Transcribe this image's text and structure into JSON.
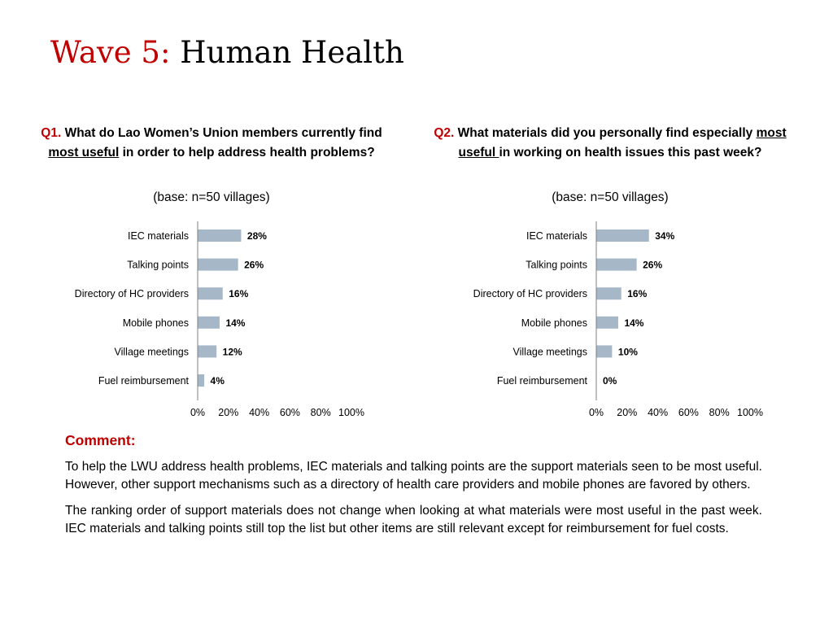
{
  "title": {
    "accent": "Wave 5:",
    "main": "Human Health"
  },
  "questions": [
    {
      "number": "Q1.",
      "text_before": "What do Lao Women’s Union members currently find ",
      "underlined": "most useful",
      "text_after": " in order to help address health problems?",
      "base": "(base: n=50 villages)"
    },
    {
      "number": "Q2.",
      "text_before": "What materials did you personally find especially ",
      "underlined": "most useful ",
      "text_after": "in working on health issues this past week?",
      "base": "(base: n=50 villages)"
    }
  ],
  "chart_data": [
    {
      "type": "bar",
      "orientation": "horizontal",
      "categories": [
        "IEC materials",
        "Talking points",
        "Directory of HC providers",
        "Mobile phones",
        "Village meetings",
        "Fuel reimbursement"
      ],
      "values": [
        28,
        26,
        16,
        14,
        12,
        4
      ],
      "value_labels": [
        "28%",
        "26%",
        "16%",
        "14%",
        "12%",
        "4%"
      ],
      "xlim": [
        0,
        100
      ],
      "xticks": [
        "0%",
        "20%",
        "40%",
        "60%",
        "80%",
        "100%"
      ],
      "bar_color": "#a6b7c8",
      "grid": false
    },
    {
      "type": "bar",
      "orientation": "horizontal",
      "categories": [
        "IEC materials",
        "Talking points",
        "Directory of HC providers",
        "Mobile phones",
        "Village meetings",
        "Fuel reimbursement"
      ],
      "values": [
        34,
        26,
        16,
        14,
        10,
        0
      ],
      "value_labels": [
        "34%",
        "26%",
        "16%",
        "14%",
        "10%",
        "0%"
      ],
      "xlim": [
        0,
        100
      ],
      "xticks": [
        "0%",
        "20%",
        "40%",
        "60%",
        "80%",
        "100%"
      ],
      "bar_color": "#a6b7c8",
      "grid": false
    }
  ],
  "comment": {
    "heading": "Comment:",
    "paragraphs": [
      "To help the LWU address health problems, IEC materials and talking points are the support materials seen to be most useful. However, other support mechanisms such as a directory of health care providers and mobile phones are favored by others.",
      "The ranking order of support materials does not change when looking at what materials were most useful in the past week. IEC materials and talking points still top the list but other items are still relevant except for reimbursement for fuel costs."
    ]
  }
}
